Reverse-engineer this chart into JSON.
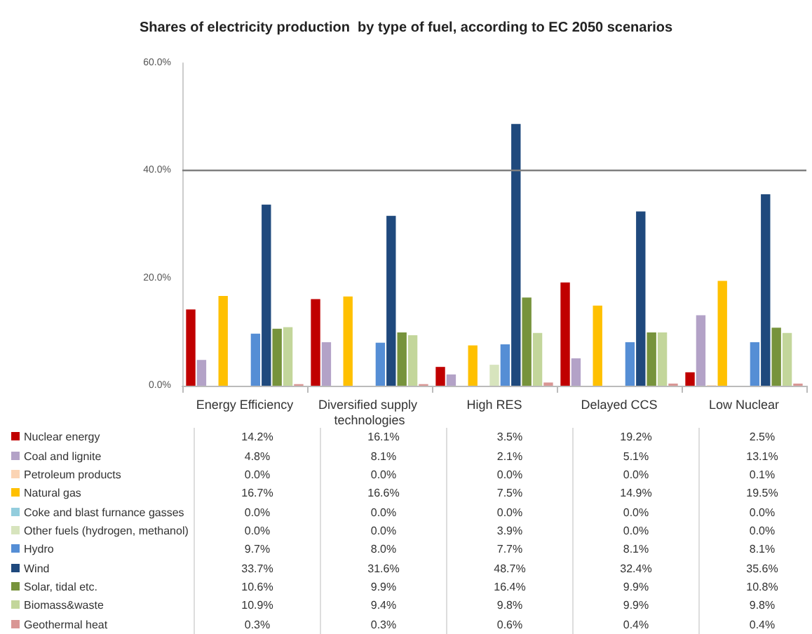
{
  "chart_data": {
    "type": "bar",
    "title": "Shares of electricity production  by type of fuel, according to EC 2050 scenarios",
    "categories": [
      "Energy Efficiency",
      "Diversified supply technologies",
      "High RES",
      "Delayed CCS",
      "Low Nuclear"
    ],
    "ylim": [
      0,
      60
    ],
    "yticks": [
      {
        "value": 0,
        "label": "0.0%"
      },
      {
        "value": 20,
        "label": "20.0%"
      },
      {
        "value": 40,
        "label": "40.0%"
      },
      {
        "value": 60,
        "label": "60.0%"
      }
    ],
    "grid": false,
    "legend": "bottom",
    "ref_lines": [
      {
        "axis": "y",
        "value": 40,
        "color": "#808080"
      }
    ],
    "series": [
      {
        "name": "Nuclear energy",
        "color": "#c00000",
        "values": [
          14.2,
          16.1,
          3.5,
          19.2,
          2.5
        ],
        "value_labels": [
          "14.2%",
          "16.1%",
          "3.5%",
          "19.2%",
          "2.5%"
        ]
      },
      {
        "name": "Coal and lignite",
        "color": "#b3a2c7",
        "values": [
          4.8,
          8.1,
          2.1,
          5.1,
          13.1
        ],
        "value_labels": [
          "4.8%",
          "8.1%",
          "2.1%",
          "5.1%",
          "13.1%"
        ]
      },
      {
        "name": "Petroleum products",
        "color": "#fbd4b4",
        "values": [
          0,
          0,
          0,
          0,
          0.1
        ],
        "value_labels": [
          "0.0%",
          "0.0%",
          "0.0%",
          "0.0%",
          "0.1%"
        ]
      },
      {
        "name": "Natural gas",
        "color": "#ffc000",
        "values": [
          16.7,
          16.6,
          7.5,
          14.9,
          19.5
        ],
        "value_labels": [
          "16.7%",
          "16.6%",
          "7.5%",
          "14.9%",
          "19.5%"
        ]
      },
      {
        "name": "Coke and blast furnance gasses",
        "color": "#93cddd",
        "values": [
          0,
          0,
          0,
          0,
          0
        ],
        "value_labels": [
          "0.0%",
          "0.0%",
          "0.0%",
          "0.0%",
          "0.0%"
        ]
      },
      {
        "name": "Other fuels (hydrogen, methanol)",
        "color": "#d7e4bd",
        "values": [
          0,
          0,
          3.9,
          0,
          0
        ],
        "value_labels": [
          "0.0%",
          "0.0%",
          "3.9%",
          "0.0%",
          "0.0%"
        ]
      },
      {
        "name": "Hydro",
        "color": "#558ed5",
        "values": [
          9.7,
          8.0,
          7.7,
          8.1,
          8.1
        ],
        "value_labels": [
          "9.7%",
          "8.0%",
          "7.7%",
          "8.1%",
          "8.1%"
        ]
      },
      {
        "name": "Wind",
        "color": "#1f497d",
        "values": [
          33.7,
          31.6,
          48.7,
          32.4,
          35.6
        ],
        "value_labels": [
          "33.7%",
          "31.6%",
          "48.7%",
          "32.4%",
          "35.6%"
        ]
      },
      {
        "name": "Solar, tidal etc.",
        "color": "#77933c",
        "values": [
          10.6,
          9.9,
          16.4,
          9.9,
          10.8
        ],
        "value_labels": [
          "10.6%",
          "9.9%",
          "16.4%",
          "9.9%",
          "10.8%"
        ]
      },
      {
        "name": "Biomass&waste",
        "color": "#c3d69b",
        "values": [
          10.9,
          9.4,
          9.8,
          9.9,
          9.8
        ],
        "value_labels": [
          "10.9%",
          "9.4%",
          "9.8%",
          "9.9%",
          "9.8%"
        ]
      },
      {
        "name": "Geothermal heat",
        "color": "#d99694",
        "values": [
          0.3,
          0.3,
          0.6,
          0.4,
          0.4
        ],
        "value_labels": [
          "0.3%",
          "0.3%",
          "0.6%",
          "0.4%",
          "0.4%"
        ]
      }
    ]
  }
}
